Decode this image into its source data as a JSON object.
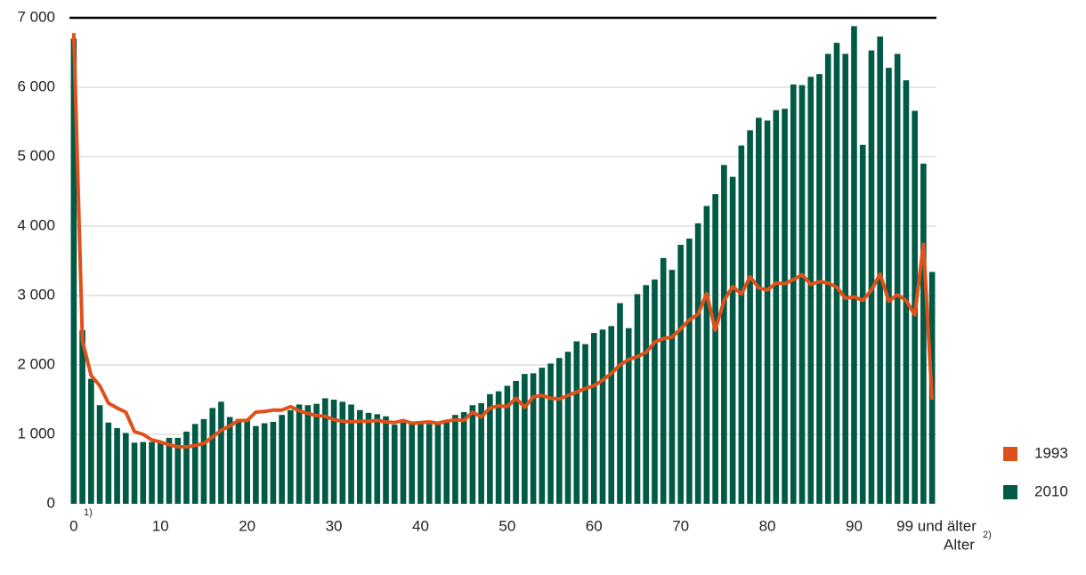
{
  "chart_data": {
    "type": "combo",
    "categories": [
      "0",
      null,
      null,
      null,
      null,
      null,
      null,
      null,
      null,
      null,
      "10",
      null,
      null,
      null,
      null,
      null,
      null,
      null,
      null,
      null,
      "20",
      null,
      null,
      null,
      null,
      null,
      null,
      null,
      null,
      null,
      "30",
      null,
      null,
      null,
      null,
      null,
      null,
      null,
      null,
      null,
      "40",
      null,
      null,
      null,
      null,
      null,
      null,
      null,
      null,
      null,
      "50",
      null,
      null,
      null,
      null,
      null,
      null,
      null,
      null,
      null,
      "60",
      null,
      null,
      null,
      null,
      null,
      null,
      null,
      null,
      null,
      "70",
      null,
      null,
      null,
      null,
      null,
      null,
      null,
      null,
      null,
      "80",
      null,
      null,
      null,
      null,
      null,
      null,
      null,
      null,
      null,
      "90",
      null,
      null,
      null,
      null,
      null,
      null,
      null,
      null,
      "99 und älter"
    ],
    "xlabel": "Alter",
    "notes": [
      "1)",
      "2)"
    ],
    "ylim": [
      0,
      7000
    ],
    "yticks": [
      0,
      {
        "value": 1000,
        "label": "1 000"
      },
      {
        "value": 2000,
        "label": "2 000"
      },
      {
        "value": 3000,
        "label": "3 000"
      },
      {
        "value": 4000,
        "label": "4 000"
      },
      {
        "value": 5000,
        "label": "5 000"
      },
      {
        "value": 6000,
        "label": "6 000"
      },
      {
        "value": 7000,
        "label": "7 000"
      }
    ],
    "grid": true,
    "series": [
      {
        "name": "1993",
        "type": "line",
        "color": "#e0501b",
        "values": [
          6780,
          2350,
          1850,
          1700,
          1450,
          1380,
          1320,
          1040,
          1000,
          920,
          890,
          850,
          820,
          820,
          840,
          870,
          960,
          1060,
          1120,
          1200,
          1200,
          1320,
          1330,
          1350,
          1350,
          1400,
          1340,
          1300,
          1270,
          1260,
          1210,
          1190,
          1180,
          1190,
          1190,
          1200,
          1180,
          1170,
          1200,
          1160,
          1170,
          1180,
          1160,
          1190,
          1210,
          1200,
          1320,
          1250,
          1380,
          1410,
          1400,
          1520,
          1390,
          1540,
          1560,
          1520,
          1510,
          1560,
          1610,
          1660,
          1700,
          1780,
          1880,
          2000,
          2080,
          2120,
          2180,
          2330,
          2380,
          2400,
          2520,
          2650,
          2730,
          3030,
          2500,
          2930,
          3130,
          3020,
          3270,
          3110,
          3080,
          3180,
          3170,
          3230,
          3300,
          3160,
          3200,
          3180,
          3120,
          2960,
          2980,
          2930,
          3080,
          3310,
          2920,
          3010,
          2930,
          2720,
          3740,
          1500
        ]
      },
      {
        "name": "2010",
        "type": "bar",
        "color": "#005a45",
        "values": [
          6700,
          2500,
          1800,
          1420,
          1170,
          1090,
          1020,
          880,
          890,
          890,
          900,
          950,
          950,
          1040,
          1150,
          1220,
          1380,
          1470,
          1250,
          1220,
          1200,
          1120,
          1160,
          1180,
          1280,
          1350,
          1430,
          1420,
          1440,
          1520,
          1500,
          1470,
          1430,
          1350,
          1310,
          1290,
          1260,
          1140,
          1170,
          1150,
          1170,
          1150,
          1180,
          1210,
          1280,
          1320,
          1420,
          1450,
          1580,
          1620,
          1700,
          1770,
          1870,
          1880,
          1960,
          2020,
          2100,
          2190,
          2340,
          2300,
          2460,
          2510,
          2560,
          2890,
          2530,
          3020,
          3150,
          3230,
          3540,
          3370,
          3730,
          3820,
          4040,
          4290,
          4460,
          4880,
          4710,
          5160,
          5380,
          5560,
          5520,
          5670,
          5690,
          6040,
          6030,
          6150,
          6190,
          6480,
          6640,
          6480,
          6880,
          5170,
          6530,
          6730,
          6280,
          6480,
          6100,
          5660,
          4900,
          3340
        ]
      }
    ],
    "legend": "right"
  }
}
